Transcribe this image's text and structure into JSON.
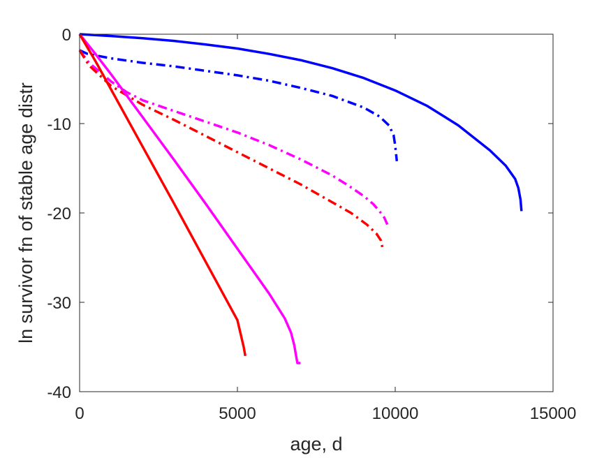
{
  "chart_data": {
    "type": "line",
    "title": "",
    "xlabel": "age, d",
    "ylabel": "ln survivor fn of stable age distr",
    "xlim": [
      0,
      15000
    ],
    "ylim": [
      -40,
      0
    ],
    "xticks": [
      0,
      5000,
      10000,
      15000
    ],
    "yticks": [
      0,
      -10,
      -20,
      -30,
      -40
    ],
    "x_tick_labels": [
      "0",
      "5000",
      "10000",
      "15000"
    ],
    "y_tick_labels": [
      "0",
      "-10",
      "-20",
      "-30",
      "-40"
    ],
    "grid": false,
    "legend": "none",
    "series": [
      {
        "color": "#0000ff",
        "style": "solid",
        "points": [
          [
            0,
            0
          ],
          [
            1000,
            -0.2
          ],
          [
            2000,
            -0.45
          ],
          [
            3000,
            -0.75
          ],
          [
            4000,
            -1.15
          ],
          [
            5000,
            -1.6
          ],
          [
            6000,
            -2.2
          ],
          [
            7000,
            -2.9
          ],
          [
            8000,
            -3.8
          ],
          [
            9000,
            -4.9
          ],
          [
            10000,
            -6.3
          ],
          [
            11000,
            -8.0
          ],
          [
            12000,
            -10.2
          ],
          [
            13000,
            -13.0
          ],
          [
            13500,
            -14.7
          ],
          [
            13800,
            -16.2
          ],
          [
            13900,
            -17.2
          ],
          [
            13970,
            -18.5
          ],
          [
            14000,
            -19.8
          ]
        ]
      },
      {
        "color": "#0000ff",
        "style": "dashdot",
        "points": [
          [
            0,
            -1.8
          ],
          [
            250,
            -2.2
          ],
          [
            1000,
            -2.7
          ],
          [
            2000,
            -3.2
          ],
          [
            3000,
            -3.6
          ],
          [
            4000,
            -4.1
          ],
          [
            5000,
            -4.6
          ],
          [
            6000,
            -5.2
          ],
          [
            7000,
            -6.0
          ],
          [
            8000,
            -6.9
          ],
          [
            9000,
            -8.2
          ],
          [
            9500,
            -9.2
          ],
          [
            9800,
            -10.2
          ],
          [
            9950,
            -11.3
          ],
          [
            10000,
            -12.5
          ],
          [
            10050,
            -14.2
          ]
        ]
      },
      {
        "color": "#ff00ff",
        "style": "dashdot",
        "points": [
          [
            0,
            -1.8
          ],
          [
            300,
            -3.2
          ],
          [
            1000,
            -5.3
          ],
          [
            1500,
            -6.5
          ],
          [
            2000,
            -7.4
          ],
          [
            3000,
            -8.6
          ],
          [
            4000,
            -9.8
          ],
          [
            5000,
            -11.0
          ],
          [
            6000,
            -12.4
          ],
          [
            7000,
            -14.0
          ],
          [
            8000,
            -15.8
          ],
          [
            8500,
            -16.9
          ],
          [
            9000,
            -18.1
          ],
          [
            9300,
            -19.0
          ],
          [
            9500,
            -19.8
          ],
          [
            9650,
            -20.5
          ],
          [
            9750,
            -21.3
          ]
        ]
      },
      {
        "color": "#ff0000",
        "style": "dashdot",
        "points": [
          [
            0,
            -1.8
          ],
          [
            300,
            -3.5
          ],
          [
            1000,
            -5.8
          ],
          [
            2000,
            -7.9
          ],
          [
            3000,
            -9.6
          ],
          [
            4000,
            -11.4
          ],
          [
            5000,
            -13.2
          ],
          [
            6000,
            -15.0
          ],
          [
            7000,
            -16.8
          ],
          [
            8000,
            -18.8
          ],
          [
            8600,
            -20.0
          ],
          [
            9100,
            -21.3
          ],
          [
            9400,
            -22.3
          ],
          [
            9550,
            -23.1
          ],
          [
            9600,
            -24.0
          ]
        ]
      },
      {
        "color": "#ff00ff",
        "style": "solid",
        "points": [
          [
            0,
            0
          ],
          [
            500,
            -2.2
          ],
          [
            1000,
            -4.5
          ],
          [
            2000,
            -9.3
          ],
          [
            3000,
            -14.1
          ],
          [
            4000,
            -19.0
          ],
          [
            5000,
            -24.0
          ],
          [
            6000,
            -29.0
          ],
          [
            6500,
            -31.8
          ],
          [
            6700,
            -33.4
          ],
          [
            6800,
            -34.8
          ],
          [
            6850,
            -35.8
          ],
          [
            6900,
            -36.8
          ],
          [
            7000,
            -36.8
          ]
        ]
      },
      {
        "color": "#ff0000",
        "style": "solid",
        "points": [
          [
            0,
            0
          ],
          [
            500,
            -3.0
          ],
          [
            1000,
            -6.2
          ],
          [
            2000,
            -12.6
          ],
          [
            3000,
            -19.0
          ],
          [
            4000,
            -25.5
          ],
          [
            5000,
            -32.0
          ],
          [
            5100,
            -33.5
          ],
          [
            5200,
            -35.0
          ],
          [
            5250,
            -36.0
          ]
        ]
      }
    ]
  }
}
